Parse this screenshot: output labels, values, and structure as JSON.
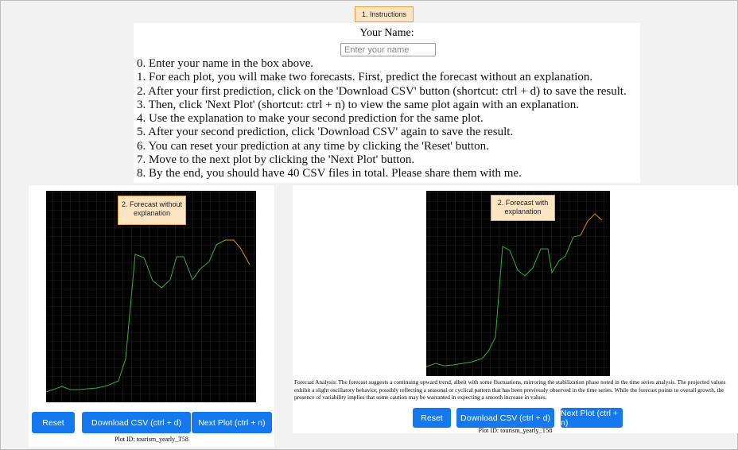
{
  "instructions": {
    "tag": "1. Instructions",
    "name_label": "Your Name:",
    "name_placeholder": "Enter your name",
    "steps": [
      "0. Enter your name in the box above.",
      "1. For each plot, you will make two forecasts. First, predict the forecast without an explanation.",
      "2. After your first prediction, click on the 'Download CSV' button (shortcut: ctrl + d) to save the result.",
      "3. Then, click 'Next Plot' (shortcut: ctrl + n) to view the same plot again with an explanation.",
      "4. Use the explanation to make your second prediction for the same plot.",
      "5. After your second prediction, click 'Download CSV' again to save the result.",
      "6. You can reset your prediction at any time by clicking the 'Reset' button.",
      "7. Move to the next plot by clicking the 'Next Plot' button.",
      "8. By the end, you should have 40 CSV files in total. Please share them with me."
    ]
  },
  "left": {
    "tag": "2. Forecast without explanation",
    "buttons": [
      "Reset",
      "Download CSV (ctrl + d)",
      "Next Plot (ctrl + n)"
    ],
    "plot_id": "Plot ID: tourism_yearly_T58"
  },
  "right": {
    "tag": "2. Forecast with explanation",
    "analysis": "Forecast Analysis: The forecast suggests a continuing upward trend, albeit with some fluctuations, mirroring the stabilization phase noted in the time series analysis. The projected values exhibit a slight oscillatory behavior, possibly reflecting a seasonal or cyclical pattern that has been previously observed in the time series. While the forecast points to overall growth, the presence of variability implies that some caution may be warranted in expecting a smooth increase in values.",
    "buttons": [
      "Reset",
      "Download CSV (ctrl + d)",
      "Next Plot (ctrl + n)"
    ],
    "plot_id": "Plot ID: tourism_yearly_T58"
  }
}
